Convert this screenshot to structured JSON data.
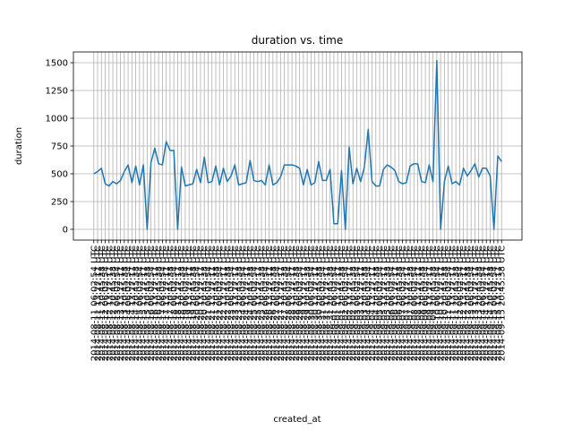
{
  "chart_data": {
    "type": "line",
    "title": "duration vs. time",
    "x_label": "created_at",
    "y_label": "duration",
    "categories": [
      "2014-08-11 06:02:54 UTC",
      "2014-08-11 13:27:11 UTC",
      "2014-08-11 20:45:38 UTC",
      "2014-08-12 06:02:54 UTC",
      "2014-08-12 13:27:11 UTC",
      "2014-08-12 20:45:38 UTC",
      "2014-08-13 06:02:54 UTC",
      "2014-08-13 13:27:11 UTC",
      "2014-08-13 20:45:38 UTC",
      "2014-08-14 06:02:54 UTC",
      "2014-08-14 13:27:11 UTC",
      "2014-08-14 20:45:38 UTC",
      "2014-08-15 06:02:54 UTC",
      "2014-08-15 13:27:11 UTC",
      "2014-08-15 20:45:38 UTC",
      "2014-08-16 06:02:54 UTC",
      "2014-08-16 13:27:11 UTC",
      "2014-08-16 20:45:38 UTC",
      "2014-08-17 06:02:54 UTC",
      "2014-08-17 13:27:11 UTC",
      "2014-08-17 20:45:38 UTC",
      "2014-08-18 06:02:54 UTC",
      "2014-08-18 13:27:11 UTC",
      "2014-08-18 20:45:38 UTC",
      "2014-08-19 06:02:54 UTC",
      "2014-08-19 13:27:11 UTC",
      "2014-08-19 20:45:38 UTC",
      "2014-08-20 06:02:54 UTC",
      "2014-08-20 13:27:11 UTC",
      "2014-08-20 20:45:38 UTC",
      "2014-08-21 06:02:54 UTC",
      "2014-08-21 13:27:11 UTC",
      "2014-08-21 20:45:38 UTC",
      "2014-08-22 06:02:54 UTC",
      "2014-08-22 13:27:11 UTC",
      "2014-08-22 20:45:38 UTC",
      "2014-08-23 06:02:54 UTC",
      "2014-08-23 13:27:11 UTC",
      "2014-08-23 20:45:38 UTC",
      "2014-08-24 06:02:54 UTC",
      "2014-08-24 13:27:11 UTC",
      "2014-08-24 20:45:38 UTC",
      "2014-08-25 06:02:54 UTC",
      "2014-08-25 13:27:11 UTC",
      "2014-08-25 20:45:38 UTC",
      "2014-08-26 06:02:54 UTC",
      "2014-08-26 13:27:11 UTC",
      "2014-08-26 20:45:38 UTC",
      "2014-08-27 06:02:54 UTC",
      "2014-08-27 13:27:11 UTC",
      "2014-08-27 20:45:38 UTC",
      "2014-08-28 06:02:54 UTC",
      "2014-08-28 13:27:11 UTC",
      "2014-08-28 20:45:38 UTC",
      "2014-08-29 06:02:54 UTC",
      "2014-08-29 13:27:11 UTC",
      "2014-08-29 20:45:38 UTC",
      "2014-08-30 06:02:54 UTC",
      "2014-08-30 13:27:11 UTC",
      "2014-08-30 20:45:38 UTC",
      "2014-08-31 06:02:54 UTC",
      "2014-08-31 13:27:11 UTC",
      "2014-08-31 20:45:38 UTC",
      "2014-09-01 06:02:54 UTC",
      "2014-09-01 13:27:11 UTC",
      "2014-09-01 20:45:38 UTC",
      "2014-09-02 06:02:54 UTC",
      "2014-09-02 13:27:11 UTC",
      "2014-09-02 20:45:38 UTC",
      "2014-09-03 06:02:54 UTC",
      "2014-09-03 13:27:11 UTC",
      "2014-09-03 20:45:38 UTC",
      "2014-09-04 06:02:54 UTC",
      "2014-09-04 13:27:11 UTC",
      "2014-09-04 20:45:38 UTC",
      "2014-09-05 06:02:54 UTC",
      "2014-09-05 13:27:11 UTC",
      "2014-09-05 20:45:38 UTC",
      "2014-09-06 06:02:54 UTC",
      "2014-09-06 13:27:11 UTC",
      "2014-09-06 20:45:38 UTC",
      "2014-09-07 06:02:54 UTC",
      "2014-09-07 13:27:11 UTC",
      "2014-09-07 20:45:38 UTC",
      "2014-09-08 06:02:54 UTC",
      "2014-09-08 13:27:11 UTC",
      "2014-09-08 20:45:38 UTC",
      "2014-09-09 06:02:54 UTC",
      "2014-09-09 13:27:11 UTC",
      "2014-09-09 20:45:38 UTC",
      "2014-09-10 06:02:54 UTC",
      "2014-09-10 13:27:11 UTC",
      "2014-09-10 20:45:38 UTC",
      "2014-09-11 06:02:54 UTC",
      "2014-09-11 13:27:11 UTC",
      "2014-09-11 20:45:38 UTC",
      "2014-09-12 06:02:54 UTC",
      "2014-09-12 13:27:11 UTC",
      "2014-09-12 20:45:38 UTC",
      "2014-09-13 06:02:54 UTC",
      "2014-09-13 13:27:11 UTC",
      "2014-09-13 20:45:38 UTC",
      "2014-09-14 06:02:54 UTC",
      "2014-09-14 13:27:11 UTC",
      "2014-09-14 20:45:38 UTC",
      "2014-09-15 06:02:54 UTC",
      "2014-09-15 13:27:11 UTC",
      "2014-09-15 20:45:38 UTC"
    ],
    "values": [
      500,
      520,
      550,
      410,
      390,
      430,
      410,
      440,
      520,
      580,
      420,
      570,
      400,
      580,
      0,
      600,
      730,
      590,
      580,
      790,
      710,
      710,
      0,
      560,
      390,
      400,
      410,
      540,
      420,
      650,
      420,
      430,
      570,
      400,
      550,
      430,
      480,
      580,
      400,
      410,
      420,
      620,
      440,
      430,
      440,
      400,
      580,
      400,
      420,
      470,
      580,
      580,
      580,
      570,
      550,
      400,
      540,
      400,
      420,
      610,
      440,
      440,
      540,
      50,
      50,
      530,
      0,
      740,
      410,
      550,
      430,
      560,
      900,
      430,
      390,
      390,
      540,
      580,
      560,
      530,
      430,
      410,
      420,
      570,
      590,
      590,
      430,
      420,
      580,
      430,
      1520,
      0,
      430,
      570,
      410,
      430,
      400,
      550,
      480,
      530,
      590,
      470,
      550,
      550,
      480,
      0,
      660,
      610
    ],
    "color": "#1f77b4",
    "ylim": [
      -97,
      1597
    ],
    "yticks": [
      0,
      250,
      500,
      750,
      1000,
      1250,
      1500
    ],
    "grid": true
  }
}
